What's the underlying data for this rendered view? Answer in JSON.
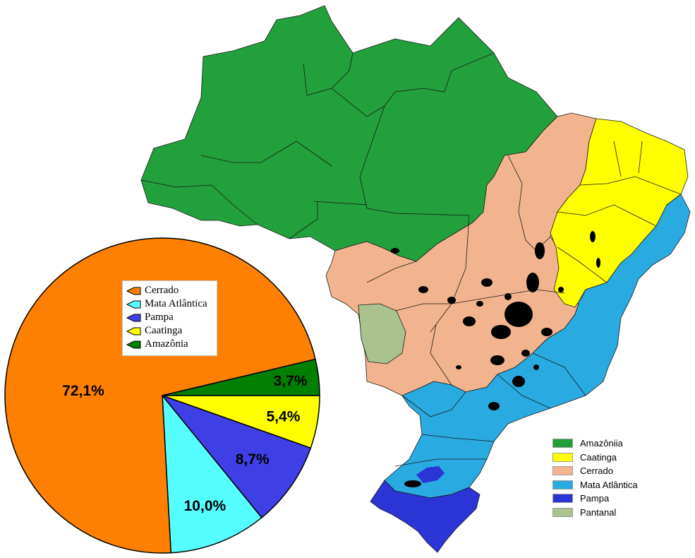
{
  "map": {
    "legend": [
      {
        "label": "Amazôniia",
        "color": "#22a03c"
      },
      {
        "label": "Caatinga",
        "color": "#ffff00"
      },
      {
        "label": "Cerrado",
        "color": "#f2b48e"
      },
      {
        "label": "Mata Atlântica",
        "color": "#29abe2"
      },
      {
        "label": "Pampa",
        "color": "#2b35d6"
      },
      {
        "label": "Pantanal",
        "color": "#a9c28e"
      }
    ]
  },
  "chart_data": {
    "type": "pie",
    "slices": [
      {
        "name": "Cerrado",
        "value": 72.1,
        "label": "72,1%",
        "color": "#ff7f00"
      },
      {
        "name": "Mata Atlântica",
        "value": 10.0,
        "label": "10,0%",
        "color": "#55ffff"
      },
      {
        "name": "Pampa",
        "value": 8.7,
        "label": "8,7%",
        "color": "#3f3fe6"
      },
      {
        "name": "Caatinga",
        "value": 5.4,
        "label": "5,4%",
        "color": "#ffff00"
      },
      {
        "name": "Amazônia",
        "value": 3.7,
        "label": "3,7%",
        "color": "#007f00"
      }
    ],
    "legend": [
      {
        "label": "Cerrado",
        "color": "#ff7f00"
      },
      {
        "label": "Mata Atlântica",
        "color": "#55ffff"
      },
      {
        "label": "Pampa",
        "color": "#3f3fe6"
      },
      {
        "label": "Caatinga",
        "color": "#ffff00"
      },
      {
        "label": "Amazônia",
        "color": "#007f00"
      }
    ]
  }
}
